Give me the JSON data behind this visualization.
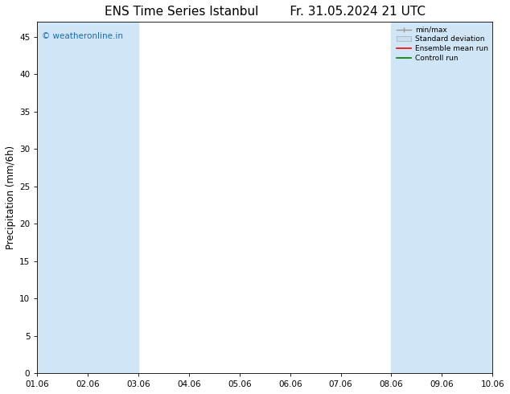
{
  "title": "ENS Time Series Istanbul",
  "title_date": "Fr. 31.05.2024 21 UTC",
  "ylabel": "Precipitation (mm/6h)",
  "ylim": [
    0,
    47
  ],
  "yticks": [
    0,
    5,
    10,
    15,
    20,
    25,
    30,
    35,
    40,
    45
  ],
  "xlim": [
    0,
    9
  ],
  "xtick_labels": [
    "01.06",
    "02.06",
    "03.06",
    "04.06",
    "05.06",
    "06.06",
    "07.06",
    "08.06",
    "09.06",
    "10.06"
  ],
  "xtick_positions": [
    0,
    1,
    2,
    3,
    4,
    5,
    6,
    7,
    8,
    9
  ],
  "shaded_bands": [
    [
      0,
      0.5
    ],
    [
      0.5,
      1.5
    ],
    [
      1.5,
      2.0
    ],
    [
      7.0,
      7.5
    ],
    [
      7.5,
      8.5
    ],
    [
      8.5,
      9.0
    ]
  ],
  "band_colors": [
    "#c8ddf0",
    "#d8e8f5",
    "#c8ddf0",
    "#c8ddf0",
    "#d8e8f5",
    "#c8ddf0"
  ],
  "watermark": "© weatheronline.in",
  "watermark_color": "#1a6ab0",
  "legend_labels": [
    "min/max",
    "Standard deviation",
    "Ensemble mean run",
    "Controll run"
  ],
  "legend_colors": [
    "#999999",
    "#c8dff0",
    "#ff0000",
    "#008000"
  ],
  "bg_color": "#ffffff",
  "axes_bg_color": "#ffffff",
  "title_fontsize": 11,
  "tick_fontsize": 7.5
}
